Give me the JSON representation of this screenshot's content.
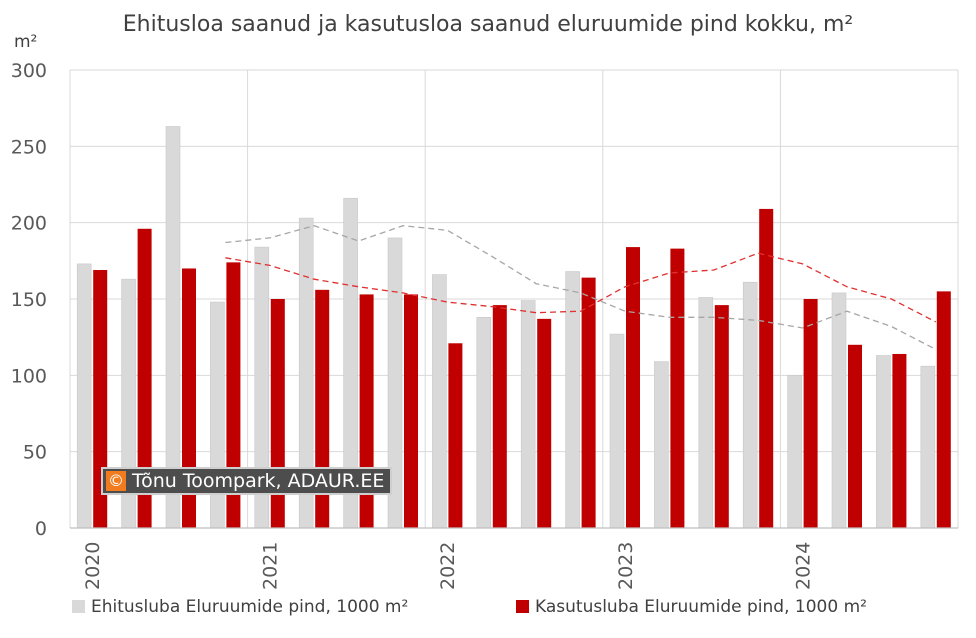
{
  "chart_data": {
    "type": "bar",
    "title": "Ehitusloa saanud ja kasutusloa saanud eluruumide pind kokku, m²",
    "ylabel": "m²",
    "xlabel": "",
    "ylim": [
      0,
      300
    ],
    "yticks": [
      0,
      50,
      100,
      150,
      200,
      250,
      300
    ],
    "grid": true,
    "legend_position": "bottom",
    "year_labels": [
      "2020",
      "2021",
      "2022",
      "2023",
      "2024"
    ],
    "categories": [
      "2020 Q1",
      "2020 Q2",
      "2020 Q3",
      "2020 Q4",
      "2021 Q1",
      "2021 Q2",
      "2021 Q3",
      "2021 Q4",
      "2022 Q1",
      "2022 Q2",
      "2022 Q3",
      "2022 Q4",
      "2023 Q1",
      "2023 Q2",
      "2023 Q3",
      "2023 Q4",
      "2024 Q1",
      "2024 Q2",
      "2024 Q3",
      "2024 Q4"
    ],
    "series": [
      {
        "name": "Ehitusluba Eluruumide pind, 1000 m²",
        "color": "#d9d9d9",
        "values": [
          173,
          163,
          263,
          148,
          184,
          203,
          216,
          190,
          166,
          138,
          149,
          168,
          127,
          109,
          151,
          161,
          100,
          154,
          113,
          106
        ]
      },
      {
        "name": "Kasutusluba Eluruumide pind, 1000 m²",
        "color": "#c00000",
        "values": [
          169,
          196,
          170,
          174,
          150,
          156,
          153,
          153,
          121,
          146,
          137,
          164,
          184,
          183,
          146,
          209,
          150,
          120,
          114,
          155
        ]
      }
    ],
    "trendlines": [
      {
        "color": "#a6a6a6",
        "start_index": 3,
        "values": [
          187,
          190,
          198,
          188,
          198,
          195,
          178,
          160,
          154,
          142,
          138,
          138,
          136,
          131,
          142,
          132,
          117
        ]
      },
      {
        "color": "#e03030",
        "start_index": 3,
        "values": [
          177,
          172,
          163,
          158,
          154,
          148,
          145,
          141,
          142,
          158,
          167,
          169,
          180,
          173,
          158,
          150,
          135
        ]
      }
    ]
  },
  "watermark": {
    "copyright_symbol": "©",
    "text": "Tõnu Toompark, ADAUR.EE"
  }
}
